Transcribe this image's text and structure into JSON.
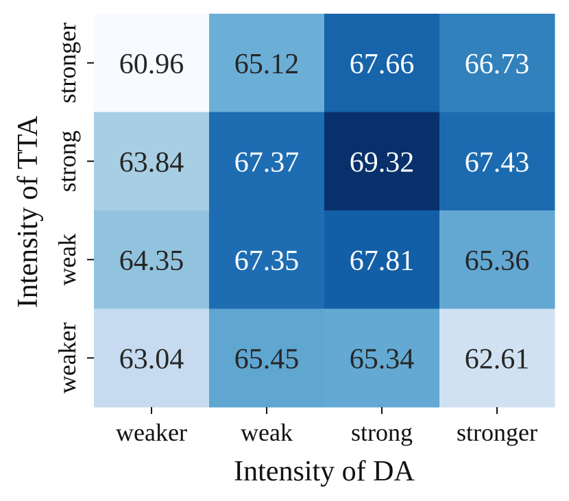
{
  "chart_data": {
    "type": "heatmap",
    "title": "",
    "xlabel": "Intensity of DA",
    "ylabel": "Intensity of TTA",
    "x_categories": [
      "weaker",
      "weak",
      "strong",
      "stronger"
    ],
    "y_categories": [
      "stronger",
      "strong",
      "weak",
      "weaker"
    ],
    "values": [
      [
        60.96,
        65.12,
        67.66,
        66.73
      ],
      [
        63.84,
        67.37,
        69.32,
        67.43
      ],
      [
        64.35,
        67.35,
        67.81,
        65.36
      ],
      [
        63.04,
        65.45,
        65.34,
        62.61
      ]
    ],
    "value_labels": [
      [
        "60.96",
        "65.12",
        "67.66",
        "66.73"
      ],
      [
        "63.84",
        "67.37",
        "69.32",
        "67.43"
      ],
      [
        "64.35",
        "67.35",
        "67.81",
        "65.36"
      ],
      [
        "63.04",
        "65.45",
        "65.34",
        "62.61"
      ]
    ],
    "colormap": "Blues",
    "color_range": [
      60.96,
      69.32
    ],
    "colorbar": false,
    "grid": false
  }
}
